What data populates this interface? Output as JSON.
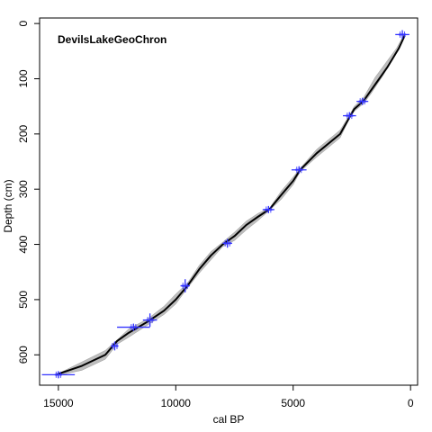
{
  "chart_data": {
    "type": "line",
    "title": "DevilsLakeGeoChron",
    "xlabel": "cal BP",
    "ylabel": "Depth (cm)",
    "x_reversed": true,
    "y_reversed": true,
    "xlim": [
      15800,
      -300
    ],
    "ylim": [
      -10,
      655
    ],
    "x_ticks": [
      15000,
      10000,
      5000,
      0
    ],
    "y_ticks": [
      0,
      100,
      200,
      300,
      400,
      500,
      600
    ],
    "median_line": {
      "name": "",
      "color": "#000000",
      "points": [
        [
          15100,
          636
        ],
        [
          14000,
          620
        ],
        [
          13000,
          600
        ],
        [
          12500,
          575
        ],
        [
          12000,
          560
        ],
        [
          11200,
          540
        ],
        [
          10500,
          520
        ],
        [
          10000,
          500
        ],
        [
          9500,
          475
        ],
        [
          9000,
          445
        ],
        [
          8500,
          420
        ],
        [
          8000,
          400
        ],
        [
          7500,
          385
        ],
        [
          7000,
          365
        ],
        [
          6500,
          350
        ],
        [
          6000,
          336
        ],
        [
          5500,
          310
        ],
        [
          5000,
          285
        ],
        [
          4700,
          265
        ],
        [
          4000,
          235
        ],
        [
          3000,
          200
        ],
        [
          2600,
          170
        ],
        [
          2400,
          155
        ],
        [
          2000,
          140
        ],
        [
          1500,
          110
        ],
        [
          1000,
          80
        ],
        [
          500,
          45
        ],
        [
          250,
          22
        ]
      ]
    },
    "uncertainty_band": {
      "color": "#bebebe",
      "upper": [
        [
          15100,
          636
        ],
        [
          14000,
          613
        ],
        [
          13000,
          592
        ],
        [
          12500,
          573
        ],
        [
          12000,
          553
        ],
        [
          11200,
          535
        ],
        [
          10500,
          512
        ],
        [
          10000,
          490
        ],
        [
          9500,
          470
        ],
        [
          9000,
          438
        ],
        [
          8500,
          413
        ],
        [
          8000,
          396
        ],
        [
          7500,
          378
        ],
        [
          7000,
          358
        ],
        [
          6500,
          344
        ],
        [
          6000,
          334
        ],
        [
          5500,
          303
        ],
        [
          5000,
          278
        ],
        [
          4700,
          262
        ],
        [
          4000,
          228
        ],
        [
          3000,
          193
        ],
        [
          2600,
          166
        ],
        [
          2400,
          150
        ],
        [
          2000,
          134
        ],
        [
          1500,
          97
        ],
        [
          1000,
          68
        ],
        [
          600,
          45
        ],
        [
          300,
          22
        ],
        [
          250,
          20
        ]
      ],
      "lower": [
        [
          15100,
          638
        ],
        [
          14000,
          628
        ],
        [
          13000,
          608
        ],
        [
          12500,
          581
        ],
        [
          12000,
          568
        ],
        [
          11200,
          546
        ],
        [
          10500,
          527
        ],
        [
          10000,
          508
        ],
        [
          9500,
          479
        ],
        [
          9000,
          452
        ],
        [
          8500,
          428
        ],
        [
          8000,
          404
        ],
        [
          7500,
          393
        ],
        [
          7000,
          374
        ],
        [
          6500,
          357
        ],
        [
          6000,
          338
        ],
        [
          5500,
          318
        ],
        [
          5000,
          292
        ],
        [
          4700,
          268
        ],
        [
          4000,
          242
        ],
        [
          3000,
          207
        ],
        [
          2600,
          172
        ],
        [
          2400,
          159
        ],
        [
          2000,
          145
        ],
        [
          1700,
          128
        ],
        [
          1200,
          96
        ],
        [
          700,
          60
        ],
        [
          400,
          38
        ],
        [
          250,
          24
        ]
      ]
    },
    "age_controls": {
      "color": "#3333ff",
      "points": [
        {
          "age": 15000,
          "depth": 636,
          "age_err": 700,
          "depth_err": 0
        },
        {
          "age": 12600,
          "depth": 584,
          "age_err": 60,
          "depth_err": 8
        },
        {
          "age": 11800,
          "depth": 550,
          "age_err": 700,
          "depth_err": 0
        },
        {
          "age": 11100,
          "depth": 537,
          "age_err": 300,
          "depth_err": 12
        },
        {
          "age": 9600,
          "depth": 475,
          "age_err": 200,
          "depth_err": 12
        },
        {
          "age": 7800,
          "depth": 398,
          "age_err": 200,
          "depth_err": 8
        },
        {
          "age": 6050,
          "depth": 337,
          "age_err": 250,
          "depth_err": 6
        },
        {
          "age": 4750,
          "depth": 265,
          "age_err": 320,
          "depth_err": 6
        },
        {
          "age": 2600,
          "depth": 167,
          "age_err": 280,
          "depth_err": 6
        },
        {
          "age": 2050,
          "depth": 141,
          "age_err": 250,
          "depth_err": 6
        },
        {
          "age": 350,
          "depth": 20,
          "age_err": 300,
          "depth_err": 8
        }
      ]
    }
  }
}
